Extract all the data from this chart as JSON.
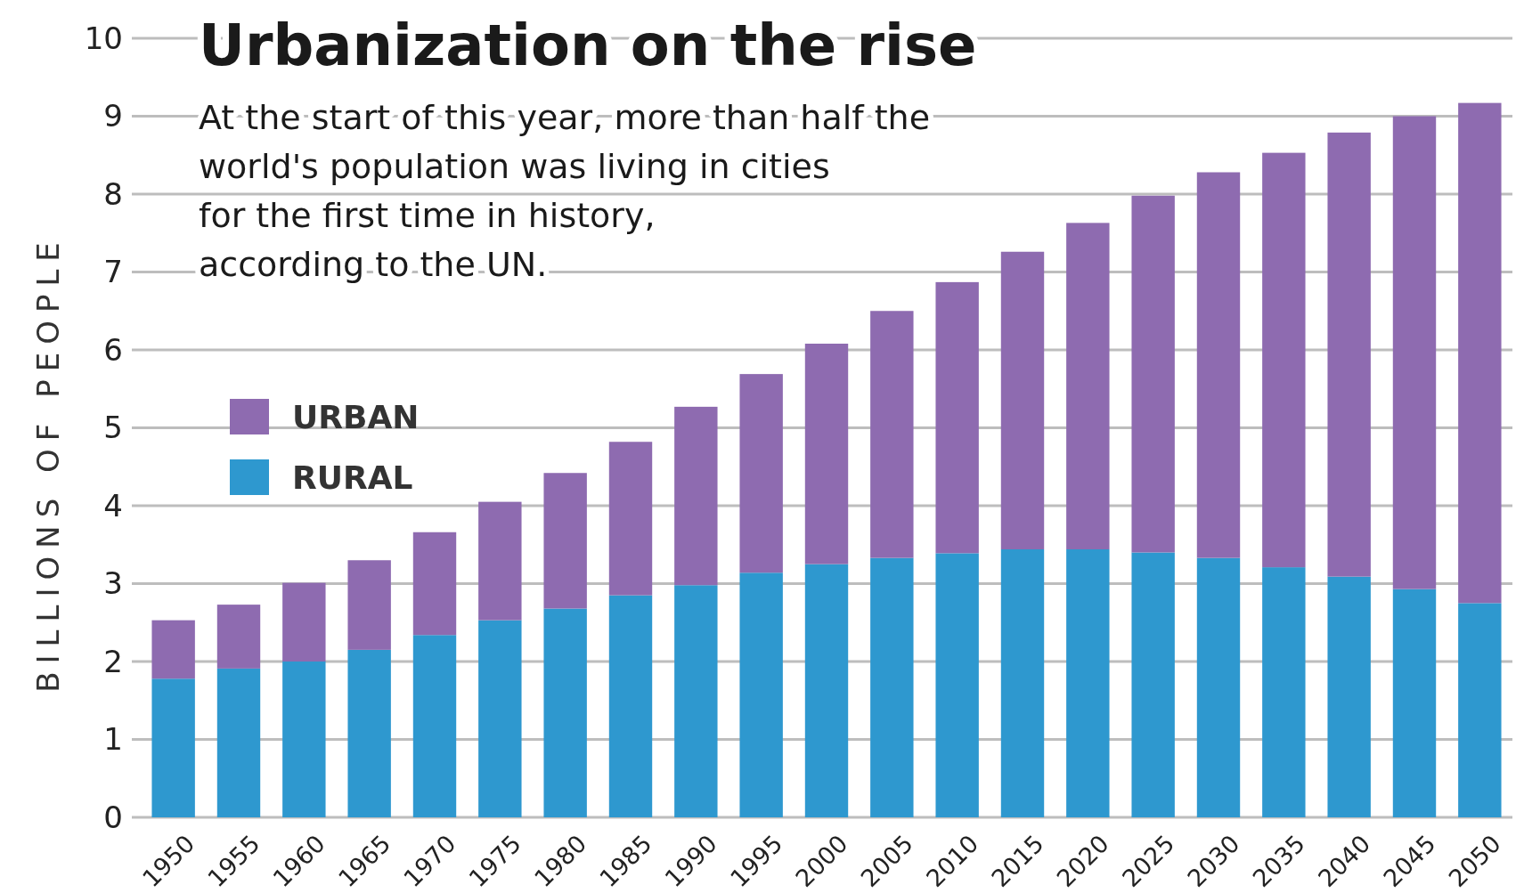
{
  "chart_data": {
    "type": "bar",
    "title": "Urbanization on the rise",
    "subtitle": "At the start of this year, more than half the\nworld's population was living in cities\nfor the first time in history,\naccording to the UN.",
    "ylabel": "BILLIONS OF PEOPLE",
    "categories": [
      "1950",
      "1955",
      "1960",
      "1965",
      "1970",
      "1975",
      "1980",
      "1985",
      "1990",
      "1995",
      "2000",
      "2005",
      "2010",
      "2015",
      "2020",
      "2025",
      "2030",
      "2035",
      "2040",
      "2045",
      "2050"
    ],
    "stacked": true,
    "series": [
      {
        "name": "RURAL",
        "color": "#2e98cf",
        "values": [
          1.78,
          1.91,
          2.0,
          2.15,
          2.34,
          2.53,
          2.68,
          2.85,
          2.98,
          3.14,
          3.25,
          3.33,
          3.39,
          3.44,
          3.44,
          3.4,
          3.33,
          3.21,
          3.09,
          2.93,
          2.75
        ]
      },
      {
        "name": "URBAN",
        "color": "#8e6bb0",
        "values": [
          0.75,
          0.82,
          1.01,
          1.15,
          1.32,
          1.52,
          1.74,
          1.97,
          2.29,
          2.55,
          2.83,
          3.17,
          3.48,
          3.82,
          4.19,
          4.58,
          4.95,
          5.32,
          5.7,
          6.07,
          6.42
        ]
      }
    ],
    "ylim": [
      0,
      10
    ],
    "yticks": [
      0,
      1,
      2,
      3,
      4,
      5,
      6,
      7,
      8,
      9,
      10
    ],
    "grid": "y",
    "legend": "left"
  }
}
